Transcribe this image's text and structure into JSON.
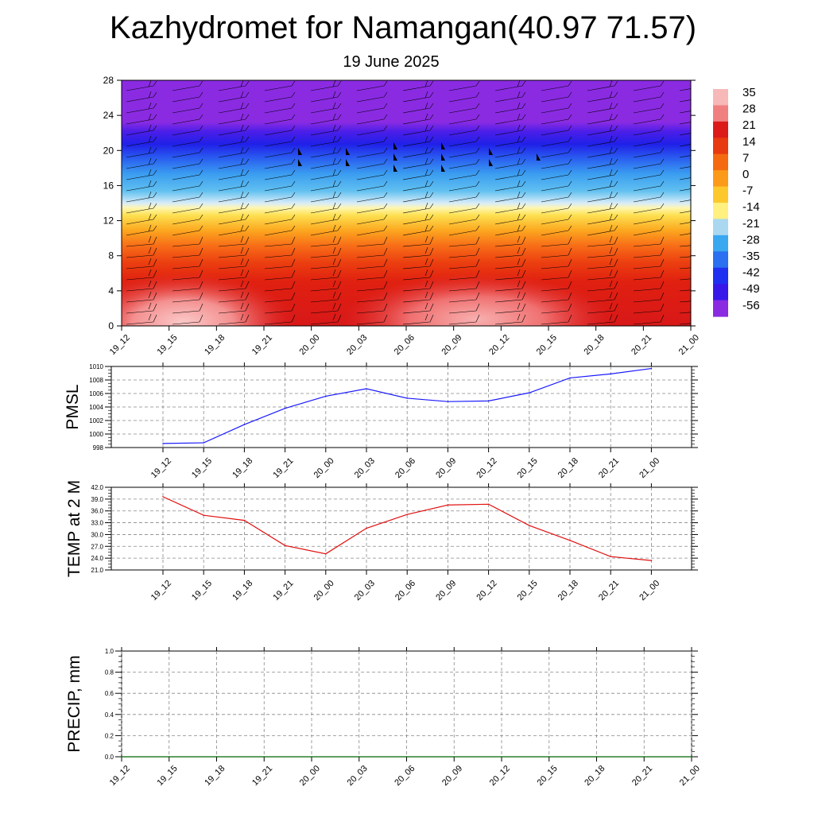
{
  "title": "Kazhydromet for Namangan(40.97 71.57)",
  "subtitle": "19 June 2025",
  "colors": {
    "pmsl_line": "#1a1aff",
    "temp_line": "#e01010",
    "precip_line": "#006400",
    "grid": "#888888"
  },
  "chart_data": [
    {
      "type": "heatmap",
      "name": "temperature-height-section",
      "x": [
        "19_12",
        "19_15",
        "19_18",
        "19_21",
        "20_00",
        "20_03",
        "20_06",
        "20_09",
        "20_12",
        "20_15",
        "20_18",
        "20_21",
        "21_00"
      ],
      "ylim": [
        0,
        28
      ],
      "yticks": [
        0,
        4,
        8,
        12,
        16,
        20,
        24,
        28
      ],
      "colorbar_labels": [
        "35",
        "28",
        "21",
        "14",
        "7",
        "0",
        "-7",
        "-14",
        "-21",
        "-28",
        "-35",
        "-42",
        "-49",
        "-56"
      ],
      "colorbar_colors": [
        "#f7b8b8",
        "#f08080",
        "#dc1a1a",
        "#e83a10",
        "#f56a10",
        "#fb9a18",
        "#fdc82c",
        "#fff080",
        "#aad8f0",
        "#3aa8f0",
        "#2a70f0",
        "#2030f0",
        "#3818e8",
        "#8a2be2"
      ]
    },
    {
      "type": "line",
      "name": "pmsl",
      "ylabel": "PMSL",
      "x": [
        "19_12",
        "19_15",
        "19_18",
        "19_21",
        "20_00",
        "20_03",
        "20_06",
        "20_09",
        "20_12",
        "20_15",
        "20_18",
        "20_21",
        "21_00"
      ],
      "values": [
        998.6,
        998.7,
        1001.4,
        1003.8,
        1005.6,
        1006.7,
        1005.3,
        1004.8,
        1004.9,
        1006.1,
        1008.3,
        1008.9,
        1009.7
      ],
      "ylim": [
        998,
        1010
      ],
      "yticks": [
        "998",
        "1000",
        "1002",
        "1004",
        "1006",
        "1008",
        "1010"
      ]
    },
    {
      "type": "line",
      "name": "temp-2m",
      "ylabel": "TEMP at 2 M",
      "x": [
        "19_12",
        "19_15",
        "19_18",
        "19_21",
        "20_00",
        "20_03",
        "20_06",
        "20_09",
        "20_12",
        "20_15",
        "20_18",
        "20_21",
        "21_00"
      ],
      "values": [
        39.6,
        34.9,
        33.6,
        27.2,
        25.1,
        31.6,
        35.1,
        37.5,
        37.7,
        32.3,
        28.5,
        24.4,
        23.4
      ],
      "ylim": [
        21,
        42
      ],
      "yticks": [
        "21.0",
        "24.0",
        "27.0",
        "30.0",
        "33.0",
        "36.0",
        "39.0",
        "42.0"
      ]
    },
    {
      "type": "line",
      "name": "precip",
      "ylabel": "PRECIP, mm",
      "x": [
        "19_12",
        "19_15",
        "19_18",
        "19_21",
        "20_00",
        "20_03",
        "20_06",
        "20_09",
        "20_12",
        "20_15",
        "20_18",
        "20_21",
        "21_00"
      ],
      "values": [
        0,
        0,
        0,
        0,
        0,
        0,
        0,
        0,
        0,
        0,
        0,
        0,
        0
      ],
      "ylim": [
        0,
        1
      ],
      "yticks": [
        "0.0",
        "0.2",
        "0.4",
        "0.6",
        "0.8",
        "1.0"
      ]
    }
  ]
}
